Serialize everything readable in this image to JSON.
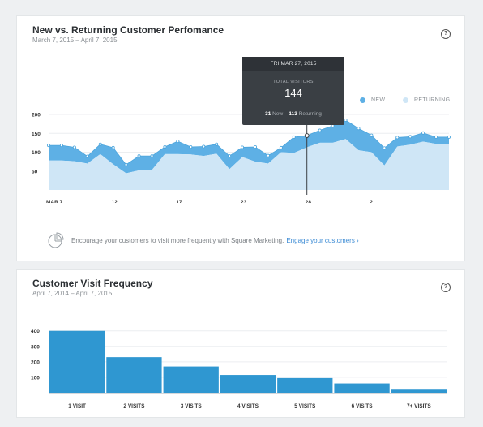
{
  "card1": {
    "title": "New vs. Returning Customer Perfomance",
    "subtitle": "March 7, 2015 – April 7, 2015",
    "help_icon": "question-circle-icon",
    "tooltip": {
      "date": "FRI MAR 27, 2015",
      "label": "TOTAL VISITORS",
      "total": "144",
      "new_count": "31",
      "new_label": "New",
      "returning_count": "113",
      "returning_label": "Returning"
    },
    "legend": {
      "new": "NEW",
      "returning": "RETURNING"
    },
    "promo": {
      "icon": "pie-chart-icon",
      "text": "Encourage your customers to visit more frequently with Square Marketing.",
      "link": "Engage your customers ›"
    }
  },
  "card2": {
    "title": "Customer Visit Frequency",
    "subtitle": "April 7, 2014 – April 7, 2015",
    "help_icon": "question-circle-icon"
  },
  "colors": {
    "new": "#5eb0e5",
    "returning": "#cfe6f6",
    "bar": "#2f97d1"
  },
  "chart_data": [
    {
      "type": "area",
      "title": "New vs. Returning Customer Perfomance",
      "x_ticks": [
        "MAR 7",
        "12",
        "17",
        "23",
        "28",
        "2"
      ],
      "x_tick_index": [
        0,
        5,
        10,
        15,
        20,
        25
      ],
      "y_ticks": [
        50,
        100,
        150,
        200
      ],
      "ylim": [
        0,
        200
      ],
      "series": [
        {
          "name": "RETURNING",
          "values": [
            78,
            78,
            76,
            70,
            95,
            68,
            44,
            52,
            53,
            95,
            95,
            94,
            90,
            96,
            55,
            87,
            75,
            70,
            100,
            98,
            113,
            125,
            125,
            135,
            105,
            100,
            65,
            115,
            120,
            128,
            122,
            122
          ]
        },
        {
          "name": "NEW",
          "values": [
            40,
            40,
            37,
            19,
            26,
            44,
            23,
            38,
            37,
            19,
            34,
            20,
            25,
            25,
            35,
            26,
            39,
            21,
            12,
            42,
            31,
            33,
            45,
            50,
            58,
            45,
            46,
            24,
            21,
            23,
            18,
            18
          ]
        }
      ],
      "highlight": {
        "index": 20,
        "date": "FRI MAR 27, 2015",
        "total": 144,
        "new": 31,
        "returning": 113
      },
      "legend_position": "top-right",
      "grid": true
    },
    {
      "type": "bar",
      "title": "Customer Visit Frequency",
      "categories": [
        "1 VISIT",
        "2 VISITS",
        "3 VISITS",
        "4 VISITS",
        "5 VISITS",
        "6 VISITS",
        "7+ VISITS"
      ],
      "values": [
        400,
        230,
        170,
        115,
        95,
        60,
        25
      ],
      "y_ticks": [
        100,
        200,
        300,
        400
      ],
      "ylim": [
        0,
        430
      ],
      "grid": true
    }
  ]
}
